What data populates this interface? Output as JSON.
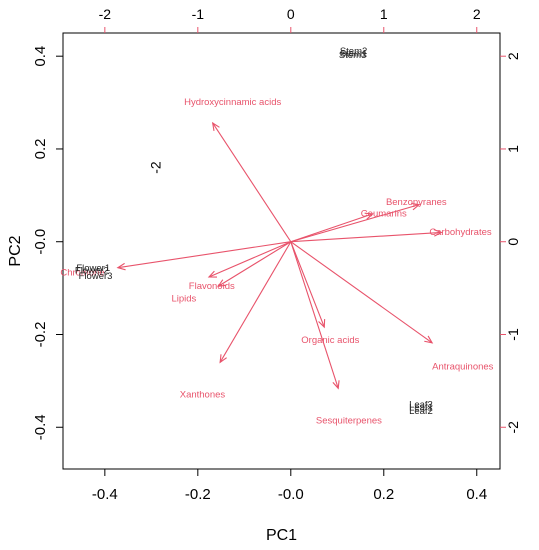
{
  "chart_data": {
    "type": "biplot",
    "xlabel": "PC1",
    "ylabel": "PC2",
    "xlim": [
      -0.49,
      0.45
    ],
    "ylim": [
      -0.49,
      0.45
    ],
    "xticks": [
      "-0.4",
      "-0.2",
      "-0.0",
      "0.2",
      "0.4"
    ],
    "xtick_values": [
      -0.4,
      -0.2,
      0.0,
      0.2,
      0.4
    ],
    "yticks": [
      "-0.4",
      "-0.2",
      "-0.0",
      "0.2",
      "0.4"
    ],
    "ytick_values": [
      -0.4,
      -0.2,
      0.0,
      0.2,
      0.4
    ],
    "top_ticks": [
      "-2",
      "-1",
      "0",
      "1",
      "2"
    ],
    "top_tick_values": [
      -2,
      -1,
      0,
      1,
      2
    ],
    "right_ticks": [
      "2",
      "1",
      "0",
      "-1",
      "-2"
    ],
    "right_tick_values": [
      2,
      1,
      0,
      -1,
      -2
    ],
    "secondary_scale": 0.2,
    "stray_label": {
      "text": "-2",
      "x": -0.28,
      "y": 0.16
    },
    "observations": [
      {
        "label": "Stem2",
        "x": 0.135,
        "y": 0.41
      },
      {
        "label": "Stem1",
        "x": 0.135,
        "y": 0.405
      },
      {
        "label": "Stem3",
        "x": 0.133,
        "y": 0.401
      },
      {
        "label": "Flower1",
        "x": -0.425,
        "y": -0.058
      },
      {
        "label": "Flower2",
        "x": -0.428,
        "y": -0.063
      },
      {
        "label": "Flower3",
        "x": -0.42,
        "y": -0.075
      },
      {
        "label": "Leaf3",
        "x": 0.28,
        "y": -0.352
      },
      {
        "label": "Leaf1",
        "x": 0.28,
        "y": -0.358
      },
      {
        "label": "Leaf2",
        "x": 0.28,
        "y": -0.366
      }
    ],
    "stray_observation_label": {
      "text": "Chromone",
      "x": -0.448,
      "y": -0.067
    },
    "variables": [
      {
        "label": "Hydroxycinnamic acids",
        "x": -0.84,
        "y": 1.28
      },
      {
        "label": "Benzopyranes",
        "x": 1.38,
        "y": 0.4
      },
      {
        "label": "Coumarins",
        "x": 0.88,
        "y": 0.3
      },
      {
        "label": "Carbohydrates",
        "x": 1.62,
        "y": 0.1
      },
      {
        "label": "Chromone",
        "x": -1.86,
        "y": -0.28
      },
      {
        "label": "Flavonoids",
        "x": -0.88,
        "y": -0.38
      },
      {
        "label": "Lipids",
        "x": -0.78,
        "y": -0.48
      },
      {
        "label": "Organic acids",
        "x": 0.36,
        "y": -0.92
      },
      {
        "label": "Antraquinones",
        "x": 1.52,
        "y": -1.09
      },
      {
        "label": "Xanthones",
        "x": -0.76,
        "y": -1.3
      },
      {
        "label": "Sesquiterpenes",
        "x": 0.51,
        "y": -1.58
      }
    ],
    "variable_label_positions": {
      "Hydroxycinnamic acids": {
        "x": -0.125,
        "y": 0.3
      },
      "Benzopyranes": {
        "x": 0.27,
        "y": 0.085
      },
      "Coumarins": {
        "x": 0.2,
        "y": 0.06
      },
      "Carbohydrates": {
        "x": 0.365,
        "y": 0.02
      },
      "Flavonoids": {
        "x": -0.17,
        "y": -0.096
      },
      "Lipids": {
        "x": -0.23,
        "y": -0.123
      },
      "Organic acids": {
        "x": 0.085,
        "y": -0.213
      },
      "Antraquinones": {
        "x": 0.37,
        "y": -0.27
      },
      "Xanthones": {
        "x": -0.19,
        "y": -0.33
      },
      "Sesquiterpenes": {
        "x": 0.125,
        "y": -0.387
      }
    },
    "colors": {
      "variables": "#e8536b",
      "observations": "#222222"
    }
  }
}
